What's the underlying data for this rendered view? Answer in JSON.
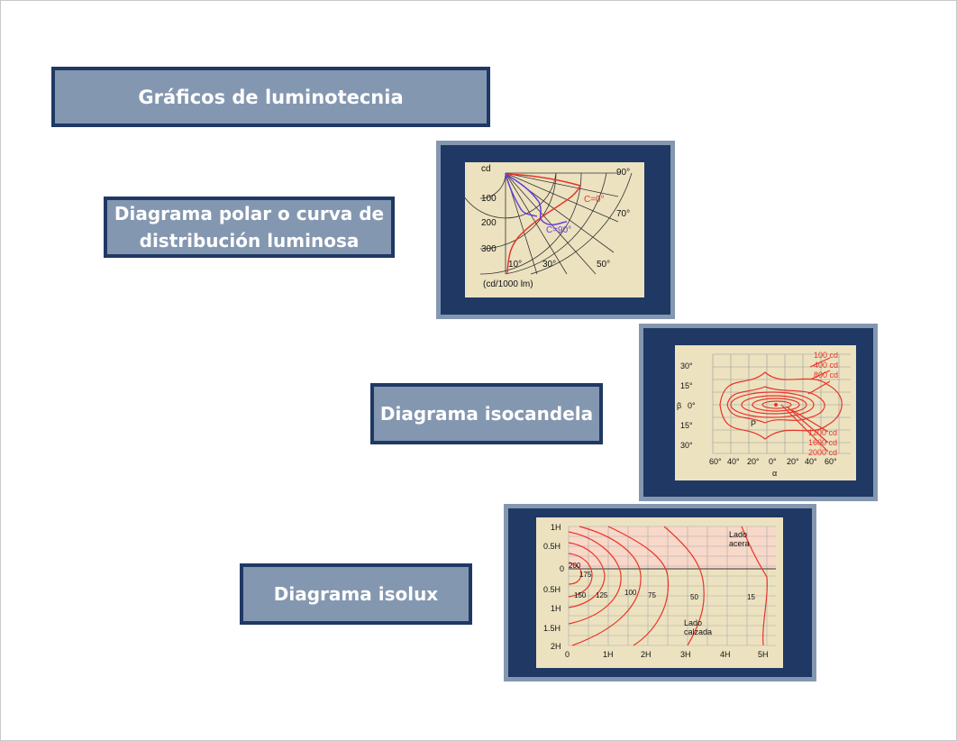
{
  "title": "Gráficos de luminotecnia",
  "labels": {
    "polar_line1": "Diagrama polar o curva de",
    "polar_line2": "distribución luminosa",
    "isocandela": "Diagrama isocandela",
    "isolux": "Diagrama isolux"
  },
  "polar": {
    "unit": "cd",
    "radial_ticks": [
      "100",
      "200",
      "300"
    ],
    "angle_right": [
      "90°",
      "70°"
    ],
    "angle_bottom": [
      "10°",
      "30°",
      "50°"
    ],
    "footer": "(cd/1000 lm)",
    "curve_c0": "C=0°",
    "curve_c90": "C=90°"
  },
  "isocandela": {
    "y_ticks": [
      "30°",
      "15°",
      "0°",
      "15°",
      "30°"
    ],
    "x_ticks": [
      "60°",
      "40°",
      "20°",
      "0°",
      "20°",
      "40°",
      "60°"
    ],
    "beta": "β",
    "alpha": "α",
    "point": "P",
    "top_levels": [
      "100 cd",
      "400 cd",
      "800 cd"
    ],
    "bottom_levels": [
      "1200 cd",
      "1600 cd",
      "2000 cd"
    ]
  },
  "isolux": {
    "y_ticks": [
      "1H",
      "0.5H",
      "0",
      "0.5H",
      "1H",
      "1.5H",
      "2H"
    ],
    "x_ticks": [
      "0",
      "1H",
      "2H",
      "3H",
      "4H",
      "5H"
    ],
    "side_top_1": "Lado",
    "side_top_2": "acera",
    "side_bottom_1": "Lado",
    "side_bottom_2": "calzada",
    "contour_values": [
      "200",
      "175",
      "150",
      "125",
      "100",
      "75",
      "50",
      "15"
    ]
  },
  "colors": {
    "frame": "#1f3864",
    "box_fill": "#8497b0",
    "panel": "#ece2c0",
    "curve": "#e8342a",
    "curve2": "#6a3cd8"
  }
}
